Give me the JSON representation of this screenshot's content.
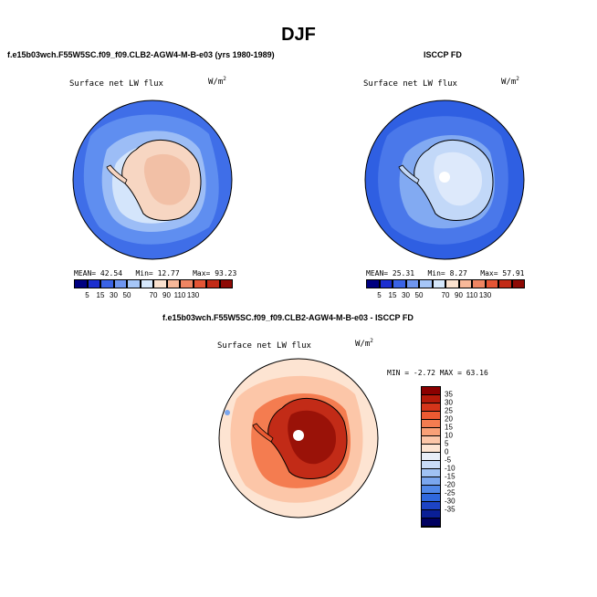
{
  "main_title": "DJF",
  "panel1": {
    "title": "f.e15b03wch.F55W5SC.f09_f09.CLB2-AGW4-M-B-e03 (yrs 1980-1989)",
    "field": "Surface net LW flux",
    "units": "W/m",
    "units_exp": "2",
    "mean_label": "MEAN=",
    "mean": "42.54",
    "min_label": "Min=",
    "min": "12.77",
    "max_label": "Max=",
    "max": "93.23"
  },
  "panel2": {
    "title": "ISCCP FD",
    "field": "Surface net LW flux",
    "units": "W/m",
    "units_exp": "2",
    "mean_label": "MEAN=",
    "mean": "25.31",
    "min_label": "Min=",
    "min": "8.27",
    "max_label": "Max=",
    "max": "57.91"
  },
  "panel3": {
    "title": "f.e15b03wch.F55W5SC.f09_f09.CLB2-AGW4-M-B-e03 - ISCCP FD",
    "field": "Surface net LW flux",
    "units": "W/m",
    "units_exp": "2",
    "minmax": "MIN = -2.72 MAX = 63.16"
  },
  "colorbar_small": {
    "colors": [
      "#000080",
      "#1c2fd0",
      "#3a63e6",
      "#6f96f0",
      "#a6c6f8",
      "#d6e8fc",
      "#fbe2cf",
      "#f7b899",
      "#ef8562",
      "#e45535",
      "#c22b17",
      "#8e0a05"
    ],
    "labels": [
      "5",
      "15",
      "30",
      "50",
      "70",
      "90",
      "110",
      "130"
    ],
    "label_positions": [
      1,
      2,
      3,
      4,
      6,
      7,
      8,
      9
    ]
  },
  "colorbar_diff": {
    "colors": [
      "#8b0000",
      "#b51a0a",
      "#d5351a",
      "#ec5a32",
      "#f47c50",
      "#f9a077",
      "#fcc6a8",
      "#fde4d2",
      "#e8eef8",
      "#c9dcf7",
      "#a0c2f3",
      "#7aa6ee",
      "#5188e8",
      "#2f68dd",
      "#1d44c5",
      "#0a1f96",
      "#000060"
    ],
    "labels": [
      "35",
      "30",
      "25",
      "20",
      "15",
      "10",
      "5",
      "0",
      "-5",
      "-10",
      "-15",
      "-20",
      "-25",
      "-30",
      "-35"
    ]
  },
  "icons": {
    "map1": "antarctic-polar-map-icon",
    "map2": "antarctic-polar-map-icon",
    "map3": "antarctic-polar-map-icon"
  }
}
